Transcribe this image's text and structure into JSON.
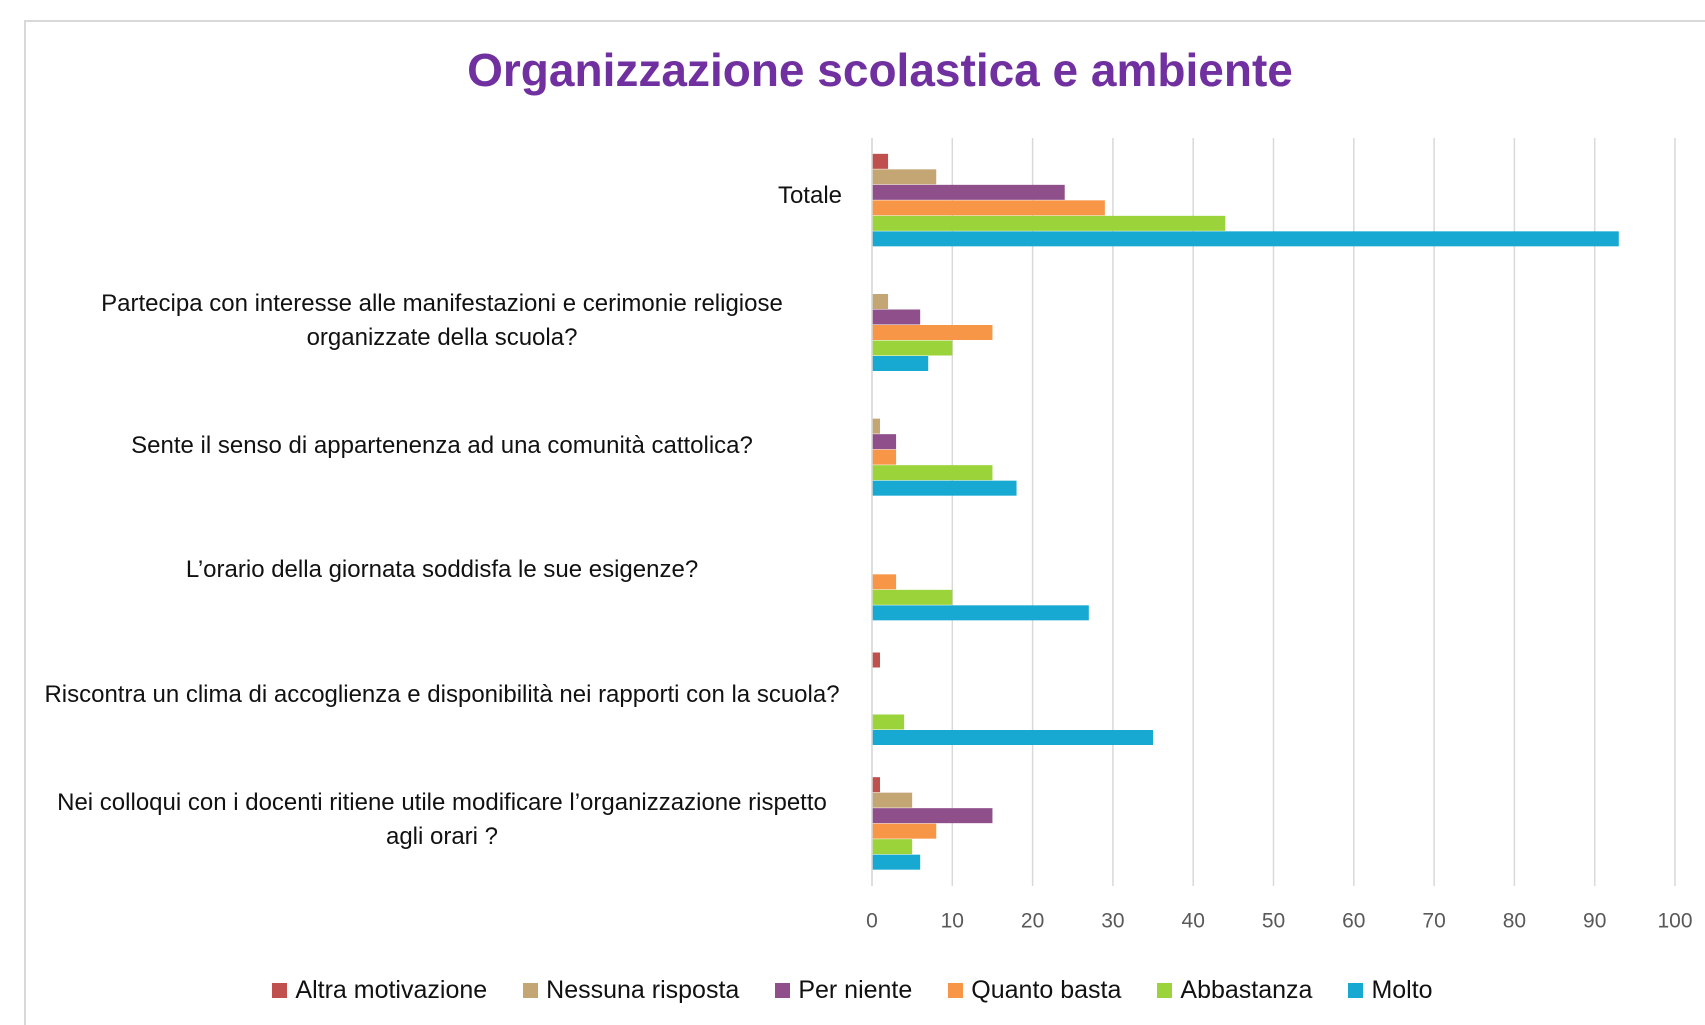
{
  "chart_data": {
    "type": "bar",
    "orientation": "horizontal",
    "title": "Organizzazione scolastica e ambiente",
    "categories": [
      "Totale",
      "Partecipa con interesse alle manifestazioni e cerimonie religiose organizzate della scuola?",
      "Sente il senso di appartenenza ad una comunità cattolica?",
      "L’orario della giornata soddisfa le sue esigenze?",
      "Riscontra un clima di accoglienza e disponibilità nei rapporti con la scuola?",
      "Nei colloqui con i docenti ritiene utile modificare l’organizzazione rispetto agli orari ?"
    ],
    "series": [
      {
        "name": "Altra motivazione",
        "color": "#c0504d",
        "values": [
          2,
          0,
          0,
          0,
          1,
          1
        ]
      },
      {
        "name": "Nessuna risposta",
        "color": "#c4a574",
        "values": [
          8,
          2,
          1,
          0,
          0,
          5
        ]
      },
      {
        "name": "Per niente",
        "color": "#8e4f8a",
        "values": [
          24,
          6,
          3,
          0,
          0,
          15
        ]
      },
      {
        "name": "Quanto basta",
        "color": "#f79646",
        "values": [
          29,
          15,
          3,
          3,
          0,
          8
        ]
      },
      {
        "name": "Abbastanza",
        "color": "#9bd43a",
        "values": [
          44,
          10,
          15,
          10,
          4,
          5
        ]
      },
      {
        "name": "Molto",
        "color": "#17a9d1",
        "values": [
          93,
          7,
          18,
          27,
          35,
          6
        ]
      }
    ],
    "xlim": [
      0,
      100
    ],
    "xticks": [
      0,
      10,
      20,
      30,
      40,
      50,
      60,
      70,
      80,
      90,
      100
    ],
    "grid": true,
    "legend": "bottom"
  }
}
